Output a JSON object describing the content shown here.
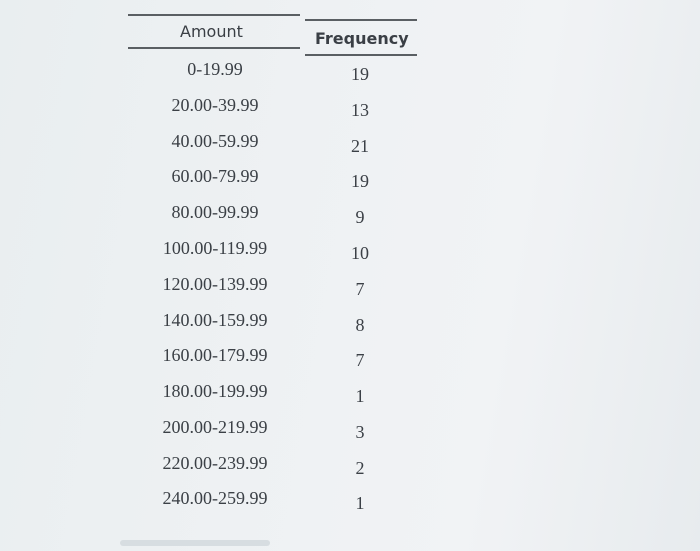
{
  "table": {
    "headers": {
      "amount": "Amount",
      "frequency": "Frequency"
    },
    "rows": [
      {
        "amount": "0-19.99",
        "frequency": "19"
      },
      {
        "amount": "20.00-39.99",
        "frequency": "13"
      },
      {
        "amount": "40.00-59.99",
        "frequency": "21"
      },
      {
        "amount": "60.00-79.99",
        "frequency": "19"
      },
      {
        "amount": "80.00-99.99",
        "frequency": "9"
      },
      {
        "amount": "100.00-119.99",
        "frequency": "10"
      },
      {
        "amount": "120.00-139.99",
        "frequency": "7"
      },
      {
        "amount": "140.00-159.99",
        "frequency": "8"
      },
      {
        "amount": "160.00-179.99",
        "frequency": "7"
      },
      {
        "amount": "180.00-199.99",
        "frequency": "1"
      },
      {
        "amount": "200.00-219.99",
        "frequency": "3"
      },
      {
        "amount": "220.00-239.99",
        "frequency": "2"
      },
      {
        "amount": "240.00-259.99",
        "frequency": "1"
      }
    ]
  }
}
